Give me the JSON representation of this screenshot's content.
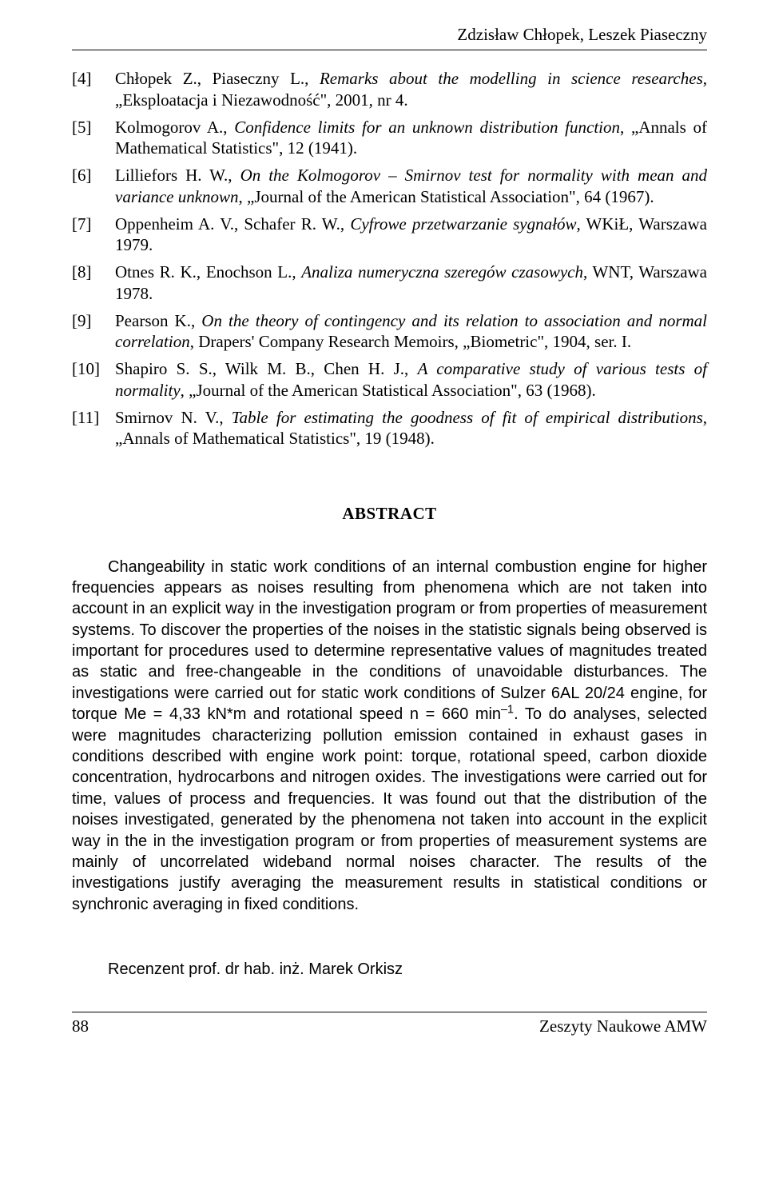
{
  "running_head": "Zdzisław Chłopek, Leszek Piaseczny",
  "references": [
    {
      "num": "[4]",
      "html": "Chłopek Z., Piaseczny L., <i>Remarks about the modelling in science researches</i>, „Eksploatacja i Niezawodność\", 2001, nr 4."
    },
    {
      "num": "[5]",
      "html": "Kolmogorov A., <i>Confidence limits for an unknown distribution function</i>, „Annals of Mathematical Statistics\", 12 (1941)."
    },
    {
      "num": "[6]",
      "html": "Lilliefors H. W., <i>On the Kolmogorov – Smirnov test for normality with mean and variance unknown</i>, „Journal of the American Statistical Association\", 64 (1967)."
    },
    {
      "num": "[7]",
      "html": "Oppenheim A. V., Schafer R. W., <i>Cyfrowe przetwarzanie sygnałów</i>, WKiŁ, Warszawa 1979."
    },
    {
      "num": "[8]",
      "html": "Otnes R. K., Enochson L., <i>Analiza numeryczna szeregów czasowych</i>, WNT, Warszawa 1978."
    },
    {
      "num": "[9]",
      "html": "Pearson K., <i>On the theory of contingency and its relation to association and normal correlation</i>, Drapers' Company Research Memoirs, „Biometric\", 1904, ser. I."
    },
    {
      "num": "[10]",
      "html": "Shapiro S. S., Wilk M. B., Chen H. J., <i>A comparative study of various tests of normality</i>, „Journal of the American Statistical Association\", 63 (1968)."
    },
    {
      "num": "[11]",
      "html": "Smirnov N. V., <i>Table for estimating the goodness of fit of empirical distributions</i>, „Annals of Mathematical Statistics\", 19 (1948)."
    }
  ],
  "abstract_heading": "ABSTRACT",
  "abstract_html": "Changeability in static work conditions of an internal combustion engine for higher frequencies appears as noises resulting from phenomena which are not taken into account in an explicit way in the investigation program or from properties of measurement systems. To discover the properties of the noises in the statistic signals being observed is important for  procedures used to determine representative values of magnitudes treated as static and free-changeable in the conditions of unavoidable disturbances. The investigations were carried out for static work conditions of Sulzer 6AL 20/24 engine, for torque Me = 4,33 kN*m and rotational speed n = 660 min<span class=\"sup\">–1</span>. To do analyses, selected were magnitudes characterizing pollution emission contained in exhaust gases in conditions described with engine work point: torque, rotational speed, carbon dioxide concentration, hydrocarbons and nitrogen oxides. The investigations were carried out for time, values of process and frequencies. It was found out that the distribution of the noises investigated, generated by the phenomena not taken into account in the explicit way in the in the investigation program or from properties of measurement systems are mainly of uncorrelated wideband normal noises character. The results of the investigations justify averaging the measurement results in statistical conditions or synchronic averaging in fixed conditions.",
  "reviewer": "Recenzent prof. dr hab. inż. Marek Orkisz",
  "page_number": "88",
  "journal_title": "Zeszyty Naukowe AMW"
}
